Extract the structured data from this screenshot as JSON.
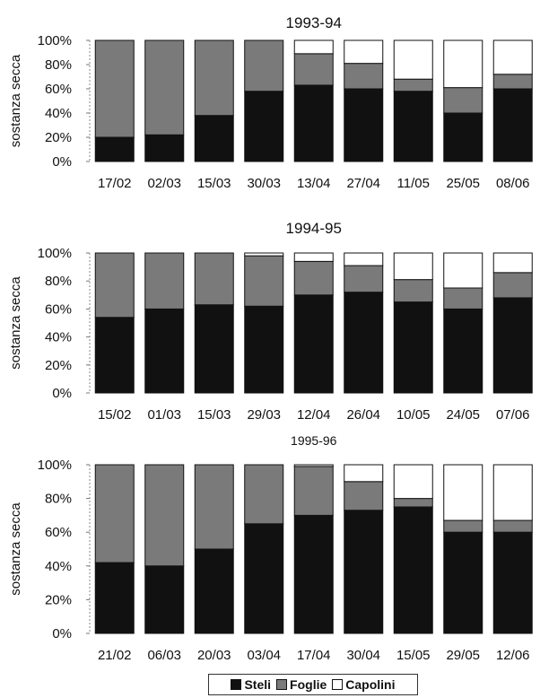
{
  "chart_data": [
    {
      "type": "bar",
      "stacked": true,
      "title": "1993-94",
      "ylabel": "sostanza secca",
      "yticks": [
        "0%",
        "20%",
        "40%",
        "60%",
        "80%",
        "100%"
      ],
      "ylim": [
        0,
        100
      ],
      "categories": [
        "17/02",
        "02/03",
        "15/03",
        "30/03",
        "13/04",
        "27/04",
        "11/05",
        "25/05",
        "08/06"
      ],
      "series": [
        {
          "name": "Steli",
          "values": [
            20,
            22,
            38,
            58,
            63,
            60,
            58,
            40,
            60
          ]
        },
        {
          "name": "Foglie",
          "values": [
            80,
            78,
            62,
            42,
            26,
            21,
            10,
            21,
            12
          ]
        },
        {
          "name": "Capolini",
          "values": [
            0,
            0,
            0,
            0,
            11,
            19,
            32,
            39,
            28
          ]
        }
      ]
    },
    {
      "type": "bar",
      "stacked": true,
      "title": "1994-95",
      "ylabel": "sostanza secca",
      "yticks": [
        "0%",
        "20%",
        "40%",
        "60%",
        "80%",
        "100%"
      ],
      "ylim": [
        0,
        100
      ],
      "categories": [
        "15/02",
        "01/03",
        "15/03",
        "29/03",
        "12/04",
        "26/04",
        "10/05",
        "24/05",
        "07/06"
      ],
      "series": [
        {
          "name": "Steli",
          "values": [
            54,
            60,
            63,
            62,
            70,
            72,
            65,
            60,
            68
          ]
        },
        {
          "name": "Foglie",
          "values": [
            46,
            40,
            37,
            36,
            24,
            19,
            16,
            15,
            18
          ]
        },
        {
          "name": "Capolini",
          "values": [
            0,
            0,
            0,
            2,
            6,
            9,
            19,
            25,
            14
          ]
        }
      ]
    },
    {
      "type": "bar",
      "stacked": true,
      "title": "1995-96",
      "ylabel": "sostanza secca",
      "yticks": [
        "0%",
        "20%",
        "40%",
        "60%",
        "80%",
        "100%"
      ],
      "ylim": [
        0,
        100
      ],
      "categories": [
        "21/02",
        "06/03",
        "20/03",
        "03/04",
        "17/04",
        "30/04",
        "15/05",
        "29/05",
        "12/06"
      ],
      "series": [
        {
          "name": "Steli",
          "values": [
            42,
            40,
            50,
            65,
            70,
            73,
            75,
            60,
            60
          ]
        },
        {
          "name": "Foglie",
          "values": [
            58,
            60,
            50,
            35,
            29,
            17,
            5,
            7,
            7
          ]
        },
        {
          "name": "Capolini",
          "values": [
            0,
            0,
            0,
            0,
            1,
            10,
            20,
            33,
            33
          ]
        }
      ]
    }
  ],
  "legend": {
    "items": [
      {
        "label": "Steli",
        "color": "#111111"
      },
      {
        "label": "Foglie",
        "color": "#7a7a7a"
      },
      {
        "label": "Capolini",
        "color": "#ffffff"
      }
    ]
  },
  "colors": {
    "steli": "#111111",
    "foglie": "#7a7a7a",
    "capolini": "#ffffff"
  }
}
